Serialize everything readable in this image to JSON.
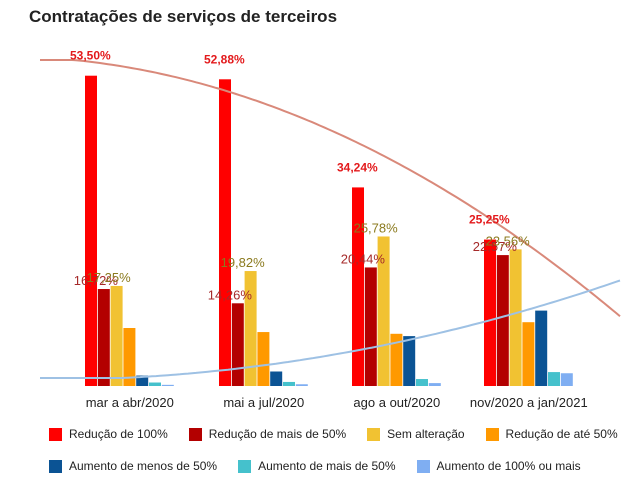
{
  "chart_data": {
    "type": "bar",
    "title": "Contratações de serviços de terceiros",
    "categories": [
      "mar a abr/2020",
      "mai a jul/2020",
      "ago a out/2020",
      "nov/2020 a jan/2021"
    ],
    "ylim": [
      0,
      55
    ],
    "grid": false,
    "legend_position": "bottom",
    "series": [
      {
        "name": "Redução de 100%",
        "color": "#ff0000",
        "values": [
          53.5,
          52.88,
          34.24,
          25.25
        ],
        "labels": [
          "53,50%",
          "52,88%",
          "34,24%",
          "25,25%"
        ],
        "label_color": "#e31a1c",
        "label_weight": "bold"
      },
      {
        "name": "Redução de mais de 50%",
        "color": "#b30000",
        "values": [
          16.72,
          14.26,
          20.44,
          22.57
        ],
        "labels": [
          "16,72%",
          "14,26%",
          "20,44%",
          "22,57%"
        ],
        "label_color": "#a52a2a",
        "label_weight": "normal"
      },
      {
        "name": "Sem alteração",
        "color": "#f1c232",
        "values": [
          17.25,
          19.82,
          25.78,
          23.56
        ],
        "labels": [
          "17,25%",
          "19,82%",
          "25,78%",
          "23,56%"
        ],
        "label_color": "#8b7a1e",
        "label_weight": "normal"
      },
      {
        "name": "Redução de até 50%",
        "color": "#ff9900",
        "values": [
          10.0,
          9.3,
          9.0,
          11.0
        ]
      },
      {
        "name": "Aumento de menos de 50%",
        "color": "#0b5394",
        "values": [
          1.8,
          2.5,
          8.6,
          13.0
        ]
      },
      {
        "name": "Aumento de mais de 50%",
        "color": "#45c1cc",
        "values": [
          0.6,
          0.7,
          1.2,
          2.4
        ]
      },
      {
        "name": "Aumento de 100% ou mais",
        "color": "#7faef2",
        "values": [
          0.2,
          0.3,
          0.5,
          2.2
        ]
      }
    ],
    "trendlines": [
      {
        "of": "Redução de 100%",
        "color": "#d9897a"
      },
      {
        "of": "Aumento de menos de 50%",
        "color": "#9ec1e4"
      }
    ]
  }
}
